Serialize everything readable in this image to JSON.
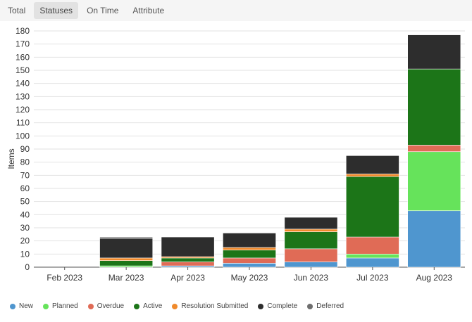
{
  "tabs": [
    {
      "label": "Total",
      "active": false
    },
    {
      "label": "Statuses",
      "active": true
    },
    {
      "label": "On Time",
      "active": false
    },
    {
      "label": "Attribute",
      "active": false
    }
  ],
  "colors": {
    "New": "#4f96cf",
    "Planned": "#66e35b",
    "Overdue": "#e06b56",
    "Active": "#1c7518",
    "Resolution Submitted": "#f08a2c",
    "Complete": "#2d2d2d",
    "Deferred": "#6e6e6e"
  },
  "chart_data": {
    "type": "bar",
    "stacked": true,
    "categories": [
      "Feb 2023",
      "Mar 2023",
      "Apr 2023",
      "May 2023",
      "Jun 2023",
      "Jul 2023",
      "Aug 2023"
    ],
    "ylabel": "Items",
    "xlabel": "",
    "ylim": [
      0,
      180
    ],
    "yticks": [
      0,
      10,
      20,
      30,
      40,
      50,
      60,
      70,
      80,
      90,
      100,
      110,
      120,
      130,
      140,
      150,
      160,
      170,
      180
    ],
    "grid": true,
    "legend_position": "bottom-left",
    "series": [
      {
        "name": "New",
        "values": [
          0,
          0,
          1,
          3,
          4,
          7,
          43
        ]
      },
      {
        "name": "Planned",
        "values": [
          0,
          1,
          0,
          0,
          0,
          3,
          45
        ]
      },
      {
        "name": "Overdue",
        "values": [
          0,
          0,
          3,
          4,
          10,
          13,
          5
        ]
      },
      {
        "name": "Active",
        "values": [
          0,
          4,
          3,
          6,
          13,
          46,
          58
        ]
      },
      {
        "name": "Resolution Submitted",
        "values": [
          0,
          2,
          1,
          2,
          2,
          2,
          0
        ]
      },
      {
        "name": "Complete",
        "values": [
          0,
          15,
          15,
          11,
          9,
          14,
          26
        ]
      },
      {
        "name": "Deferred",
        "values": [
          0,
          1,
          0,
          0,
          0,
          0,
          0
        ]
      }
    ]
  }
}
